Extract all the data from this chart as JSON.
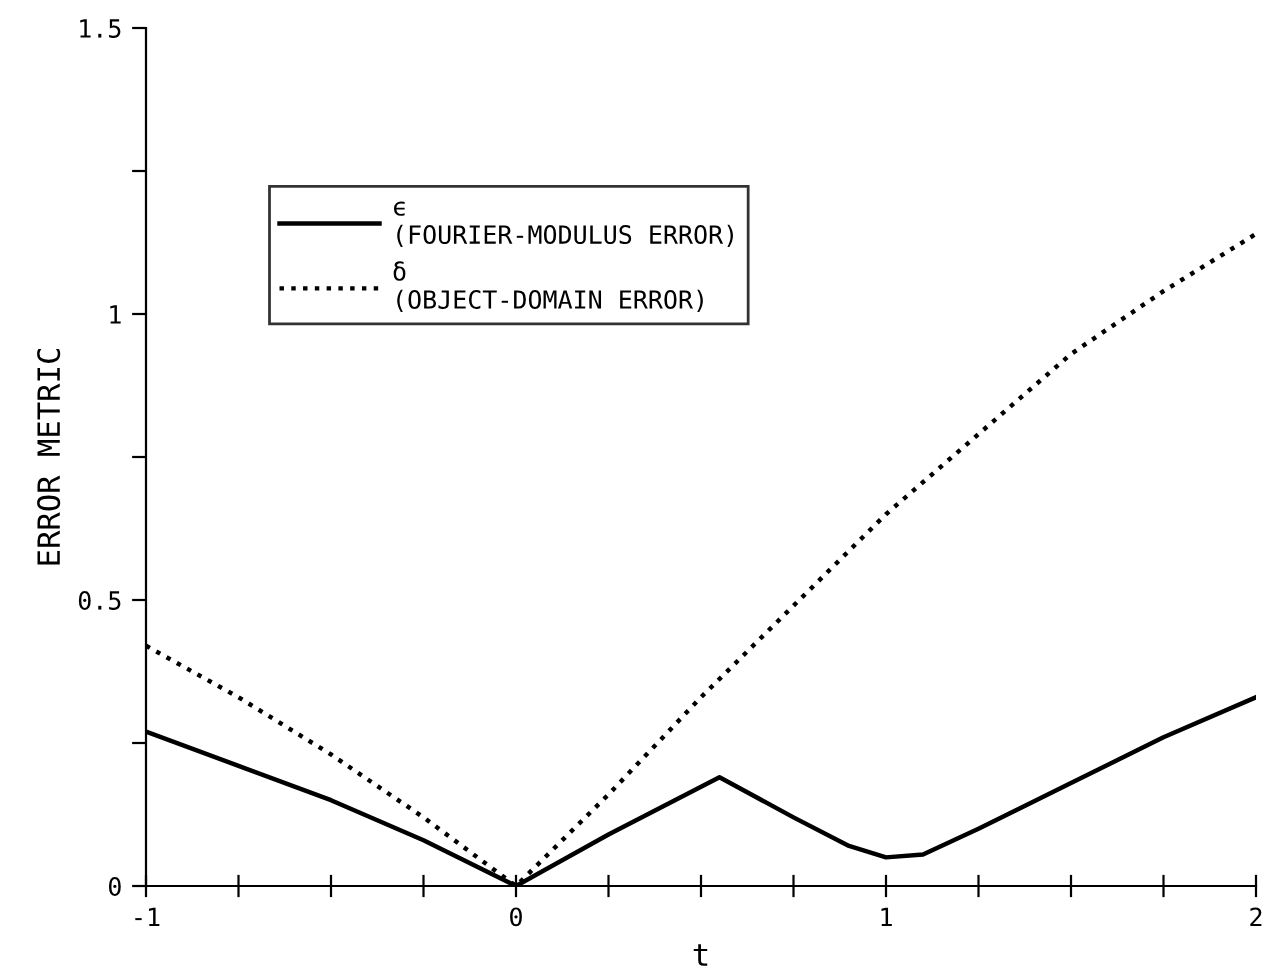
{
  "chart_data": {
    "type": "line",
    "xlabel": "t",
    "ylabel": "ERROR METRIC",
    "x": [
      -1,
      -0.75,
      -0.5,
      -0.25,
      0,
      0.25,
      0.55,
      0.75,
      0.9,
      1.0,
      1.1,
      1.25,
      1.5,
      1.75,
      2
    ],
    "series": [
      {
        "name": "ϵ\n(FOURIER-MODULUS ERROR)",
        "color": "#000000",
        "line_style": "solid",
        "values": [
          0.27,
          0.21,
          0.15,
          0.08,
          0,
          0.09,
          0.19,
          0.12,
          0.07,
          0.05,
          0.055,
          0.1,
          0.18,
          0.26,
          0.33
        ]
      },
      {
        "name": "δ\n(OBJECT-DOMAIN ERROR)",
        "color": "#000000",
        "line_style": "dotted",
        "x": [
          -1,
          -0.75,
          -0.5,
          -0.25,
          0,
          0.25,
          0.5,
          0.75,
          1,
          1.25,
          1.5,
          1.75,
          2
        ],
        "values": [
          0.42,
          0.33,
          0.23,
          0.12,
          0,
          0.16,
          0.33,
          0.49,
          0.65,
          0.79,
          0.93,
          1.04,
          1.14
        ]
      }
    ],
    "xlim": [
      -1,
      2
    ],
    "ylim": [
      0,
      1.5
    ],
    "xticks": [
      -1,
      {
        "value": -0.75,
        "label": null
      },
      {
        "value": -0.5,
        "label": null
      },
      {
        "value": -0.25,
        "label": null
      },
      0,
      {
        "value": 0.25,
        "label": null
      },
      {
        "value": 0.5,
        "label": null
      },
      {
        "value": 0.75,
        "label": null
      },
      1,
      {
        "value": 1.25,
        "label": null
      },
      {
        "value": 1.5,
        "label": null
      },
      {
        "value": 1.75,
        "label": null
      },
      2
    ],
    "yticks": [
      0,
      {
        "value": 0.25,
        "label": null
      },
      0.5,
      {
        "value": 0.75,
        "label": null
      },
      1,
      {
        "value": 1.25,
        "label": null
      },
      1.5
    ],
    "legend": "top left",
    "grid": false,
    "marker": "none"
  }
}
